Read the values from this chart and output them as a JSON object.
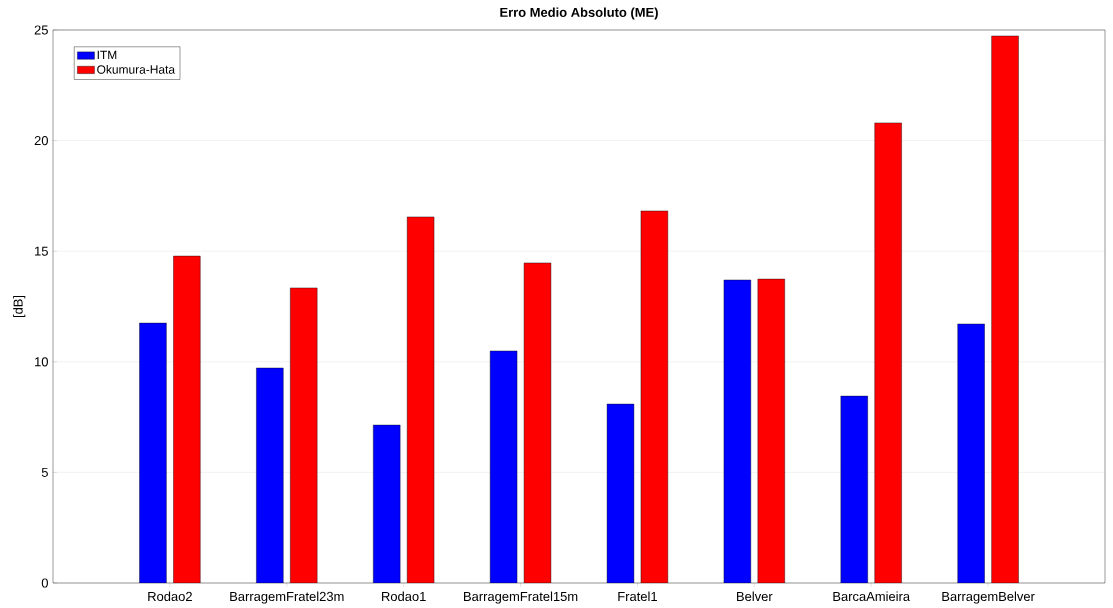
{
  "chart_data": {
    "type": "bar",
    "title": "Erro Medio Absoluto (ME)",
    "ylabel": "[dB]",
    "categories": [
      "Rodao2",
      "BarragemFratel23m",
      "Rodao1",
      "BarragemFratel15m",
      "Fratel1",
      "Belver",
      "BarcaAmieira",
      "BarragemBelver"
    ],
    "series": [
      {
        "name": "ITM",
        "color": "#0000ff",
        "values": [
          11.75,
          9.72,
          7.14,
          10.49,
          8.09,
          13.7,
          8.45,
          11.71
        ]
      },
      {
        "name": "Okumura-Hata",
        "color": "#ff0000",
        "values": [
          14.78,
          13.34,
          16.55,
          14.47,
          16.82,
          13.74,
          20.8,
          24.73
        ]
      }
    ],
    "ylim": [
      0,
      25
    ],
    "yticks": [
      0,
      5,
      10,
      15,
      20,
      25
    ],
    "grid": "y",
    "legend": "top left"
  }
}
